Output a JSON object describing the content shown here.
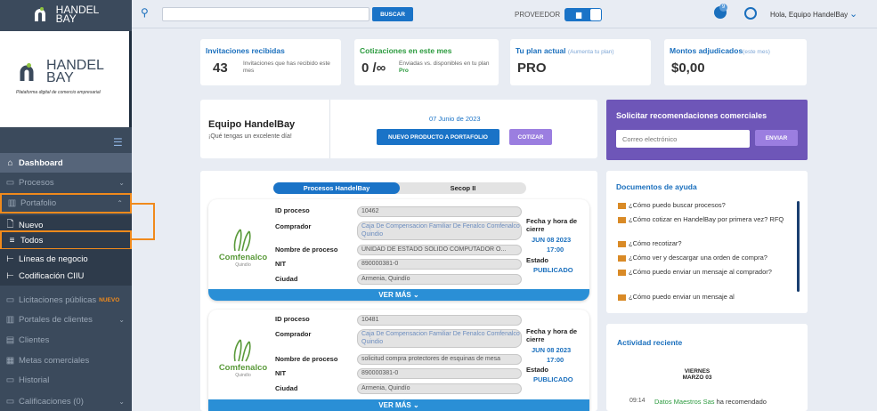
{
  "brand": {
    "name": "HANDEL",
    "suffix": "BAY",
    "tagline": "Plataforma digital de comercio empresarial"
  },
  "topbar": {
    "search_placeholder": "",
    "search_button": "BUSCAR",
    "role_label": "PROVEEDOR",
    "notification_count": "9",
    "greeting": "Hola, Equipo HandelBay"
  },
  "sidebar": {
    "items": [
      {
        "label": "Dashboard",
        "icon": "home-icon"
      },
      {
        "label": "Procesos",
        "icon": "briefcase-icon"
      },
      {
        "label": "Portafolio",
        "icon": "building-icon"
      },
      {
        "label": "Nuevo",
        "icon": "document-icon"
      },
      {
        "label": "Todos",
        "icon": "list-icon"
      },
      {
        "label": "Líneas de negocio",
        "icon": "tree-icon"
      },
      {
        "label": "Codificación CIIU",
        "icon": "tree-icon"
      },
      {
        "label": "Licitaciones públicas",
        "icon": "briefcase-icon",
        "badge": "NUEVO"
      },
      {
        "label": "Portales de clientes",
        "icon": "building-icon"
      },
      {
        "label": "Clientes",
        "icon": "clients-icon"
      },
      {
        "label": "Metas comerciales",
        "icon": "goals-icon"
      },
      {
        "label": "Historial",
        "icon": "history-icon"
      },
      {
        "label": "Calificaciones (0)",
        "icon": "ratings-icon"
      }
    ]
  },
  "kpis": [
    {
      "title": "Invitaciones recibidas",
      "subtitle": "",
      "value": "43",
      "desc": "Invitaciones que has recibido este mes"
    },
    {
      "title": "Cotizaciones en este mes",
      "subtitle": "",
      "value": "0 /∞",
      "desc": "Enviadas vs. disponibles en tu plan",
      "desc_accent": "Pro"
    },
    {
      "title": "Tu plan actual",
      "subtitle": "(Aumenta tu plan)",
      "value": "PRO",
      "desc": ""
    },
    {
      "title": "Montos adjudicados",
      "subtitle": "(este mes)",
      "value": "$0,00",
      "desc": ""
    }
  ],
  "welcome": {
    "name": "Equipo HandelBay",
    "message": "¡Qué tengas un excelente día!",
    "date": "07 Junio de 2023",
    "btn_new_product": "NUEVO PRODUCTO A PORTAFOLIO",
    "btn_quote": "COTIZAR"
  },
  "recommend": {
    "title": "Solicitar recomendaciones comerciales",
    "email_placeholder": "Correo electrónico",
    "send": "ENVIAR"
  },
  "tabs": {
    "active": "Procesos HandelBay",
    "inactive": "Secop II"
  },
  "process_labels": {
    "id": "ID proceso",
    "buyer": "Comprador",
    "name": "Nombre de proceso",
    "nit": "NIT",
    "city": "Ciudad",
    "deadline": "Fecha y hora de cierre",
    "status": "Estado",
    "more": "VER MÁS"
  },
  "company": {
    "logo_name": "Comfenalco",
    "logo_sub": "Quindío"
  },
  "processes": [
    {
      "id": "10462",
      "buyer": "Caja De Compensacion Familiar De Fenalco Comfenalco Quindio",
      "name": "UNIDAD DE ESTADO SOLIDO COMPUTADOR O...",
      "nit": "890000381-0",
      "city": "Armenia, Quindío",
      "date": "JUN 08 2023",
      "time": "17:00",
      "status": "PUBLICADO"
    },
    {
      "id": "10481",
      "buyer": "Caja De Compensacion Familiar De Fenalco Comfenalco Quindio",
      "name": "solicitud compra protectores de esquinas de mesa",
      "nit": "890000381-0",
      "city": "Armenia, Quindío",
      "date": "JUN 08 2023",
      "time": "17:00",
      "status": "PUBLICADO"
    }
  ],
  "docs": {
    "title": "Documentos de ayuda",
    "items": [
      "¿Cómo puedo buscar procesos?",
      "¿Cómo cotizar en HandelBay por primera vez? RFQ",
      "¿Cómo recotizar?",
      "¿Cómo ver y descargar una orden de compra?",
      "¿Cómo puedo enviar un mensaje al comprador?",
      "¿Cómo puedo enviar un mensaje al"
    ]
  },
  "activity": {
    "title": "Actividad reciente",
    "day": "VIERNES",
    "date": "MARZO 03",
    "time": "09:14",
    "actor": "Datos Maestros Sas",
    "action": "ha recomendado"
  }
}
